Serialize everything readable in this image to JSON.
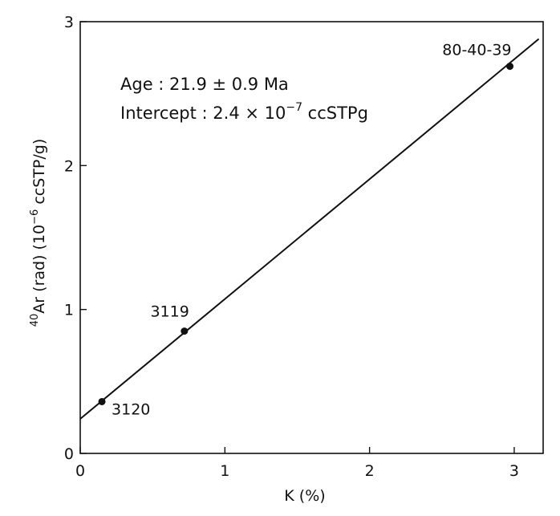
{
  "chart_data": {
    "type": "scatter",
    "xlabel": "K (%)",
    "ylabel": {
      "superscript": "40",
      "main": "Ar (rad) (10",
      "exp": "−6",
      "tail": " ccSTP/g)"
    },
    "xlim": [
      0,
      3.2
    ],
    "ylim": [
      0,
      3
    ],
    "x_ticks": [
      0,
      1,
      2,
      3
    ],
    "y_ticks": [
      0,
      1,
      2,
      3
    ],
    "x_tick_labels": [
      "0",
      "1",
      "2",
      "3"
    ],
    "y_tick_labels": [
      "0",
      "1",
      "2",
      "3"
    ],
    "grid": false,
    "points": [
      {
        "label": "3120",
        "x": 0.15,
        "y": 0.36
      },
      {
        "label": "3119",
        "x": 0.72,
        "y": 0.85
      },
      {
        "label": "80-40-39",
        "x": 2.97,
        "y": 2.69
      }
    ],
    "fit_line": {
      "x": [
        0,
        3.17
      ],
      "y": [
        0.24,
        2.88
      ]
    },
    "annotations": {
      "age": "Age : 21.9 ± 0.9  Ma",
      "intercept_main": "Intercept : 2.4 × 10",
      "intercept_exp": "−7",
      "intercept_tail": " ccSTPg"
    }
  }
}
